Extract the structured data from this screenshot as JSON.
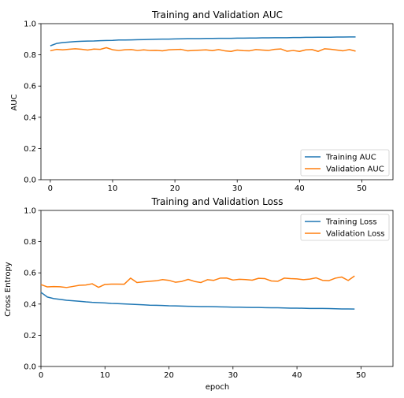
{
  "colors": {
    "training": "#1f77b4",
    "validation": "#ff7f0e"
  },
  "chart_data": [
    {
      "type": "line",
      "title": "Training and Validation AUC",
      "xlabel": "",
      "ylabel": "AUC",
      "xlim": [
        -1.5,
        55
      ],
      "ylim": [
        0.0,
        1.0
      ],
      "xticks": [
        "0",
        "10",
        "20",
        "30",
        "40",
        "50"
      ],
      "yticks": [
        "0.0",
        "0.2",
        "0.4",
        "0.6",
        "0.8",
        "1.0"
      ],
      "legend": "lower-right",
      "x": [
        0,
        1,
        2,
        3,
        4,
        5,
        6,
        7,
        8,
        9,
        10,
        11,
        12,
        13,
        14,
        15,
        16,
        17,
        18,
        19,
        20,
        21,
        22,
        23,
        24,
        25,
        26,
        27,
        28,
        29,
        30,
        31,
        32,
        33,
        34,
        35,
        36,
        37,
        38,
        39,
        40,
        41,
        42,
        43,
        44,
        45,
        46,
        47,
        48,
        49
      ],
      "series": [
        {
          "name": "Training AUC",
          "color": "#1f77b4",
          "values": [
            0.858,
            0.873,
            0.879,
            0.882,
            0.885,
            0.887,
            0.888,
            0.889,
            0.891,
            0.892,
            0.893,
            0.895,
            0.895,
            0.896,
            0.897,
            0.898,
            0.899,
            0.9,
            0.901,
            0.901,
            0.902,
            0.903,
            0.904,
            0.904,
            0.904,
            0.905,
            0.905,
            0.906,
            0.906,
            0.906,
            0.907,
            0.907,
            0.908,
            0.908,
            0.909,
            0.909,
            0.91,
            0.91,
            0.91,
            0.911,
            0.911,
            0.912,
            0.912,
            0.913,
            0.913,
            0.913,
            0.914,
            0.914,
            0.915,
            0.915
          ]
        },
        {
          "name": "Validation AUC",
          "color": "#ff7f0e",
          "values": [
            0.826,
            0.835,
            0.832,
            0.836,
            0.839,
            0.836,
            0.831,
            0.837,
            0.835,
            0.846,
            0.833,
            0.828,
            0.833,
            0.834,
            0.828,
            0.832,
            0.828,
            0.829,
            0.826,
            0.832,
            0.834,
            0.835,
            0.826,
            0.828,
            0.83,
            0.832,
            0.827,
            0.834,
            0.826,
            0.822,
            0.831,
            0.827,
            0.826,
            0.834,
            0.831,
            0.828,
            0.835,
            0.838,
            0.823,
            0.828,
            0.822,
            0.832,
            0.834,
            0.822,
            0.839,
            0.836,
            0.831,
            0.826,
            0.834,
            0.824
          ]
        }
      ]
    },
    {
      "type": "line",
      "title": "Training and Validation Loss",
      "xlabel": "epoch",
      "ylabel": "Cross Entropy",
      "xlim": [
        0,
        55
      ],
      "ylim": [
        0.0,
        1.0
      ],
      "xticks": [
        "0",
        "10",
        "20",
        "30",
        "40",
        "50"
      ],
      "yticks": [
        "0.0",
        "0.2",
        "0.4",
        "0.6",
        "0.8",
        "1.0"
      ],
      "legend": "upper-right",
      "x": [
        0,
        1,
        2,
        3,
        4,
        5,
        6,
        7,
        8,
        9,
        10,
        11,
        12,
        13,
        14,
        15,
        16,
        17,
        18,
        19,
        20,
        21,
        22,
        23,
        24,
        25,
        26,
        27,
        28,
        29,
        30,
        31,
        32,
        33,
        34,
        35,
        36,
        37,
        38,
        39,
        40,
        41,
        42,
        43,
        44,
        45,
        46,
        47,
        48,
        49
      ],
      "series": [
        {
          "name": "Training Loss",
          "color": "#1f77b4",
          "values": [
            0.475,
            0.445,
            0.435,
            0.43,
            0.424,
            0.421,
            0.418,
            0.414,
            0.411,
            0.409,
            0.407,
            0.404,
            0.403,
            0.401,
            0.399,
            0.397,
            0.395,
            0.393,
            0.392,
            0.391,
            0.389,
            0.388,
            0.387,
            0.386,
            0.385,
            0.384,
            0.384,
            0.383,
            0.382,
            0.381,
            0.38,
            0.38,
            0.379,
            0.378,
            0.378,
            0.377,
            0.376,
            0.376,
            0.375,
            0.374,
            0.374,
            0.373,
            0.372,
            0.372,
            0.372,
            0.371,
            0.37,
            0.369,
            0.369,
            0.368
          ]
        },
        {
          "name": "Validation Loss",
          "color": "#ff7f0e",
          "values": [
            0.525,
            0.51,
            0.512,
            0.511,
            0.506,
            0.513,
            0.52,
            0.522,
            0.53,
            0.507,
            0.526,
            0.528,
            0.528,
            0.527,
            0.566,
            0.538,
            0.542,
            0.546,
            0.549,
            0.557,
            0.552,
            0.54,
            0.545,
            0.558,
            0.545,
            0.538,
            0.556,
            0.552,
            0.566,
            0.567,
            0.554,
            0.559,
            0.557,
            0.553,
            0.565,
            0.563,
            0.548,
            0.546,
            0.566,
            0.563,
            0.561,
            0.556,
            0.56,
            0.568,
            0.552,
            0.55,
            0.566,
            0.573,
            0.551,
            0.58
          ]
        }
      ]
    }
  ]
}
